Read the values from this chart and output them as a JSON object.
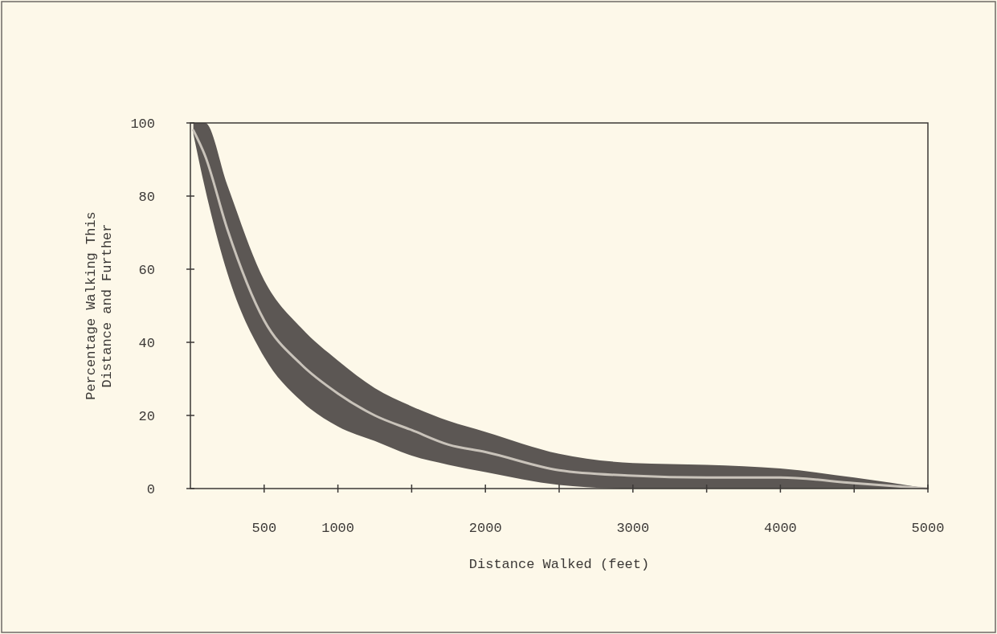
{
  "chart_data": {
    "type": "line",
    "xlabel": "Distance Walked (feet)",
    "ylabel": "Percentage Walking This\nDistance and Further",
    "x": [
      20,
      100,
      250,
      500,
      750,
      1000,
      1250,
      1500,
      1750,
      2000,
      2500,
      3000,
      3500,
      4000,
      4500,
      5000
    ],
    "series": [
      {
        "color": "#c9c3ba",
        "values": [
          98,
          91,
          71,
          46,
          34,
          26,
          20,
          16,
          12,
          10,
          5,
          3.5,
          3,
          3,
          1.5,
          0
        ],
        "lower": [
          97,
          82,
          59,
          36,
          24,
          17,
          13,
          9,
          6.5,
          4.5,
          1,
          0,
          0,
          0,
          0,
          0
        ],
        "upper": [
          100,
          100,
          83,
          57,
          44,
          35,
          27.5,
          22.5,
          18.5,
          15.5,
          9.5,
          7,
          6.5,
          5.5,
          3,
          0
        ]
      }
    ],
    "xlim": [
      0,
      5000
    ],
    "ylim": [
      0,
      100
    ],
    "xticks": [
      500,
      1000,
      {
        "value": 1500,
        "label": null
      },
      2000,
      {
        "value": 2500,
        "label": null
      },
      3000,
      {
        "value": 3500,
        "label": null
      },
      4000,
      {
        "value": 4500,
        "label": null
      },
      5000
    ],
    "yticks": [
      0,
      20,
      40,
      60,
      80,
      100
    ],
    "grid": false
  }
}
